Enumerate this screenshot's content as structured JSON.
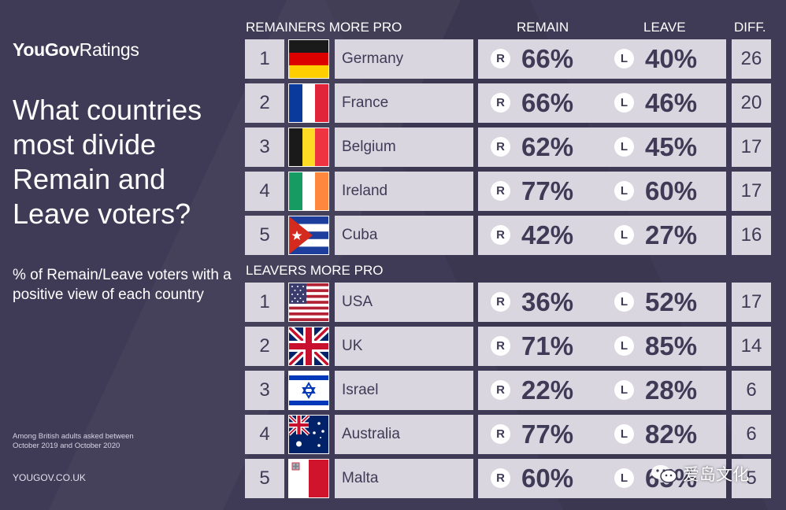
{
  "brand": {
    "bold": "YouGov",
    "light": "Ratings"
  },
  "headline": "What countries most divide Remain and Leave voters?",
  "subhead": "% of Remain/Leave voters with a positive view of each country",
  "note": "Among British adults asked between October 2019 and October 2020",
  "site": "YOUGOV.CO.UK",
  "watermark": "爱岛文化",
  "columns": {
    "remain": "REMAIN",
    "leave": "LEAVE",
    "diff": "DIFF."
  },
  "badges": {
    "remain": "R",
    "leave": "L"
  },
  "colors": {
    "background": "#3f3a55",
    "cell": "#d9d6e0",
    "text_dark": "#3f3a55"
  },
  "chart_data": {
    "type": "table",
    "sections": [
      {
        "title": "REMAINERS MORE PRO",
        "rows": [
          {
            "rank": "1",
            "country": "Germany",
            "flag": "germany-flag",
            "remain": "66%",
            "leave": "40%",
            "diff": "26"
          },
          {
            "rank": "2",
            "country": "France",
            "flag": "france-flag",
            "remain": "66%",
            "leave": "46%",
            "diff": "20"
          },
          {
            "rank": "3",
            "country": "Belgium",
            "flag": "belgium-flag",
            "remain": "62%",
            "leave": "45%",
            "diff": "17"
          },
          {
            "rank": "4",
            "country": "Ireland",
            "flag": "ireland-flag",
            "remain": "77%",
            "leave": "60%",
            "diff": "17"
          },
          {
            "rank": "5",
            "country": "Cuba",
            "flag": "cuba-flag",
            "remain": "42%",
            "leave": "27%",
            "diff": "16"
          }
        ]
      },
      {
        "title": "LEAVERS MORE PRO",
        "rows": [
          {
            "rank": "1",
            "country": "USA",
            "flag": "usa-flag",
            "remain": "36%",
            "leave": "52%",
            "diff": "17"
          },
          {
            "rank": "2",
            "country": "UK",
            "flag": "uk-flag",
            "remain": "71%",
            "leave": "85%",
            "diff": "14"
          },
          {
            "rank": "3",
            "country": "Israel",
            "flag": "israel-flag",
            "remain": "22%",
            "leave": "28%",
            "diff": "6"
          },
          {
            "rank": "4",
            "country": "Australia",
            "flag": "australia-flag",
            "remain": "77%",
            "leave": "82%",
            "diff": "6"
          },
          {
            "rank": "5",
            "country": "Malta",
            "flag": "malta-flag",
            "remain": "60%",
            "leave": "65%",
            "diff": "5"
          }
        ]
      }
    ]
  }
}
